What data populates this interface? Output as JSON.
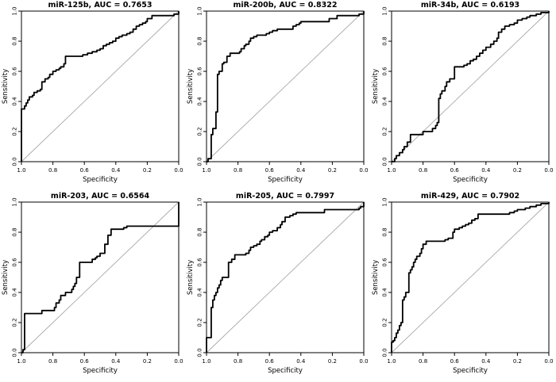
{
  "page": {
    "background": "#ffffff"
  },
  "colors": {
    "curve": "#000000",
    "diagonal": "#aaaaaa",
    "box": "#000000",
    "text": "#000000"
  },
  "chart_data": [
    {
      "type": "line",
      "chart_kind": "ROC curve",
      "mirna": "miR-125b",
      "auc": 0.7653,
      "title": "miR-125b, AUC = 0.7653",
      "xlabel": "Specificity",
      "ylabel": "Sensitivity",
      "x_ticks": [
        "1.0",
        "0.8",
        "0.6",
        "0.4",
        "0.2",
        "0.0"
      ],
      "y_ticks": [
        "0.0",
        "0.2",
        "0.4",
        "0.6",
        "0.8",
        "1.0"
      ],
      "xlim": [
        1.0,
        0.0
      ],
      "ylim": [
        0.0,
        1.0
      ],
      "diagonal_reference": true,
      "roc_points": [
        [
          1.0,
          0.0
        ],
        [
          1.0,
          0.35
        ],
        [
          0.98,
          0.37
        ],
        [
          0.97,
          0.39
        ],
        [
          0.96,
          0.41
        ],
        [
          0.95,
          0.43
        ],
        [
          0.93,
          0.44
        ],
        [
          0.92,
          0.46
        ],
        [
          0.9,
          0.47
        ],
        [
          0.88,
          0.48
        ],
        [
          0.87,
          0.53
        ],
        [
          0.85,
          0.55
        ],
        [
          0.83,
          0.56
        ],
        [
          0.82,
          0.58
        ],
        [
          0.8,
          0.6
        ],
        [
          0.78,
          0.61
        ],
        [
          0.76,
          0.62
        ],
        [
          0.75,
          0.63
        ],
        [
          0.73,
          0.65
        ],
        [
          0.72,
          0.7
        ],
        [
          0.61,
          0.71
        ],
        [
          0.58,
          0.72
        ],
        [
          0.55,
          0.73
        ],
        [
          0.52,
          0.74
        ],
        [
          0.5,
          0.75
        ],
        [
          0.48,
          0.77
        ],
        [
          0.46,
          0.78
        ],
        [
          0.44,
          0.79
        ],
        [
          0.42,
          0.8
        ],
        [
          0.4,
          0.82
        ],
        [
          0.38,
          0.83
        ],
        [
          0.36,
          0.84
        ],
        [
          0.33,
          0.85
        ],
        [
          0.31,
          0.86
        ],
        [
          0.29,
          0.88
        ],
        [
          0.27,
          0.9
        ],
        [
          0.25,
          0.91
        ],
        [
          0.23,
          0.92
        ],
        [
          0.21,
          0.93
        ],
        [
          0.2,
          0.95
        ],
        [
          0.17,
          0.97
        ],
        [
          0.03,
          0.98
        ],
        [
          0.0,
          1.0
        ]
      ]
    },
    {
      "type": "line",
      "chart_kind": "ROC curve",
      "mirna": "miR-200b",
      "auc": 0.8322,
      "title": "miR-200b, AUC = 0.8322",
      "xlabel": "Specificity",
      "ylabel": "Sensitivity",
      "x_ticks": [
        "1.0",
        "0.8",
        "0.6",
        "0.4",
        "0.2",
        "0.0"
      ],
      "y_ticks": [
        "0.0",
        "0.2",
        "0.4",
        "0.6",
        "0.8",
        "1.0"
      ],
      "xlim": [
        1.0,
        0.0
      ],
      "ylim": [
        0.0,
        1.0
      ],
      "diagonal_reference": true,
      "roc_points": [
        [
          1.0,
          0.0
        ],
        [
          0.99,
          0.02
        ],
        [
          0.97,
          0.18
        ],
        [
          0.96,
          0.22
        ],
        [
          0.94,
          0.33
        ],
        [
          0.93,
          0.58
        ],
        [
          0.92,
          0.6
        ],
        [
          0.9,
          0.65
        ],
        [
          0.89,
          0.66
        ],
        [
          0.87,
          0.7
        ],
        [
          0.85,
          0.72
        ],
        [
          0.79,
          0.73
        ],
        [
          0.78,
          0.75
        ],
        [
          0.76,
          0.77
        ],
        [
          0.75,
          0.78
        ],
        [
          0.73,
          0.8
        ],
        [
          0.72,
          0.82
        ],
        [
          0.7,
          0.83
        ],
        [
          0.68,
          0.84
        ],
        [
          0.62,
          0.85
        ],
        [
          0.6,
          0.86
        ],
        [
          0.58,
          0.87
        ],
        [
          0.55,
          0.88
        ],
        [
          0.45,
          0.9
        ],
        [
          0.43,
          0.91
        ],
        [
          0.41,
          0.92
        ],
        [
          0.4,
          0.93
        ],
        [
          0.22,
          0.95
        ],
        [
          0.17,
          0.97
        ],
        [
          0.03,
          0.98
        ],
        [
          0.0,
          1.0
        ]
      ]
    },
    {
      "type": "line",
      "chart_kind": "ROC curve",
      "mirna": "miR-34b",
      "auc": 0.6193,
      "title": "miR-34b, AUC = 0.6193",
      "xlabel": "Specificity",
      "ylabel": "Sensitivity",
      "x_ticks": [
        "1.0",
        "0.8",
        "0.6",
        "0.4",
        "0.2",
        "0.0"
      ],
      "y_ticks": [
        "0.0",
        "0.2",
        "0.4",
        "0.6",
        "0.8",
        "1.0"
      ],
      "xlim": [
        1.0,
        0.0
      ],
      "ylim": [
        0.0,
        1.0
      ],
      "diagonal_reference": true,
      "roc_points": [
        [
          1.0,
          0.0
        ],
        [
          0.98,
          0.02
        ],
        [
          0.97,
          0.04
        ],
        [
          0.95,
          0.06
        ],
        [
          0.93,
          0.08
        ],
        [
          0.92,
          0.1
        ],
        [
          0.9,
          0.13
        ],
        [
          0.88,
          0.18
        ],
        [
          0.8,
          0.2
        ],
        [
          0.74,
          0.22
        ],
        [
          0.72,
          0.24
        ],
        [
          0.71,
          0.26
        ],
        [
          0.7,
          0.42
        ],
        [
          0.69,
          0.45
        ],
        [
          0.68,
          0.47
        ],
        [
          0.66,
          0.5
        ],
        [
          0.65,
          0.53
        ],
        [
          0.63,
          0.55
        ],
        [
          0.6,
          0.63
        ],
        [
          0.54,
          0.64
        ],
        [
          0.52,
          0.65
        ],
        [
          0.5,
          0.67
        ],
        [
          0.48,
          0.68
        ],
        [
          0.46,
          0.7
        ],
        [
          0.44,
          0.72
        ],
        [
          0.42,
          0.74
        ],
        [
          0.4,
          0.76
        ],
        [
          0.37,
          0.78
        ],
        [
          0.35,
          0.8
        ],
        [
          0.33,
          0.82
        ],
        [
          0.32,
          0.86
        ],
        [
          0.3,
          0.88
        ],
        [
          0.28,
          0.9
        ],
        [
          0.25,
          0.91
        ],
        [
          0.22,
          0.92
        ],
        [
          0.2,
          0.94
        ],
        [
          0.17,
          0.95
        ],
        [
          0.14,
          0.96
        ],
        [
          0.12,
          0.97
        ],
        [
          0.08,
          0.98
        ],
        [
          0.05,
          0.99
        ],
        [
          0.0,
          1.0
        ]
      ]
    },
    {
      "type": "line",
      "chart_kind": "ROC curve",
      "mirna": "miR-203",
      "auc": 0.6564,
      "title": "miR-203, AUC = 0.6564",
      "xlabel": "Specificity",
      "ylabel": "Sensitivity",
      "x_ticks": [
        "1.0",
        "0.8",
        "0.6",
        "0.4",
        "0.2",
        "0.0"
      ],
      "y_ticks": [
        "0.0",
        "0.2",
        "0.4",
        "0.6",
        "0.8",
        "1.0"
      ],
      "xlim": [
        1.0,
        0.0
      ],
      "ylim": [
        0.0,
        1.0
      ],
      "diagonal_reference": true,
      "roc_points": [
        [
          1.0,
          0.0
        ],
        [
          0.99,
          0.02
        ],
        [
          0.98,
          0.26
        ],
        [
          0.87,
          0.28
        ],
        [
          0.79,
          0.3
        ],
        [
          0.78,
          0.33
        ],
        [
          0.76,
          0.35
        ],
        [
          0.75,
          0.38
        ],
        [
          0.72,
          0.4
        ],
        [
          0.68,
          0.42
        ],
        [
          0.67,
          0.44
        ],
        [
          0.66,
          0.46
        ],
        [
          0.65,
          0.5
        ],
        [
          0.63,
          0.6
        ],
        [
          0.55,
          0.62
        ],
        [
          0.53,
          0.63
        ],
        [
          0.52,
          0.64
        ],
        [
          0.5,
          0.66
        ],
        [
          0.47,
          0.72
        ],
        [
          0.45,
          0.78
        ],
        [
          0.43,
          0.82
        ],
        [
          0.35,
          0.83
        ],
        [
          0.33,
          0.84
        ],
        [
          0.0,
          1.0
        ]
      ]
    },
    {
      "type": "line",
      "chart_kind": "ROC curve",
      "mirna": "miR-205",
      "auc": 0.7997,
      "title": "miR-205, AUC = 0.7997",
      "xlabel": "Specificity",
      "ylabel": "Sensitivity",
      "x_ticks": [
        "1.0",
        "0.8",
        "0.6",
        "0.4",
        "0.2",
        "0.0"
      ],
      "y_ticks": [
        "0.0",
        "0.2",
        "0.4",
        "0.6",
        "0.8",
        "1.0"
      ],
      "xlim": [
        1.0,
        0.0
      ],
      "ylim": [
        0.0,
        1.0
      ],
      "diagonal_reference": true,
      "roc_points": [
        [
          1.0,
          0.0
        ],
        [
          1.0,
          0.1
        ],
        [
          0.97,
          0.3
        ],
        [
          0.96,
          0.35
        ],
        [
          0.95,
          0.38
        ],
        [
          0.94,
          0.4
        ],
        [
          0.93,
          0.43
        ],
        [
          0.92,
          0.45
        ],
        [
          0.91,
          0.48
        ],
        [
          0.9,
          0.5
        ],
        [
          0.86,
          0.6
        ],
        [
          0.84,
          0.62
        ],
        [
          0.82,
          0.65
        ],
        [
          0.75,
          0.66
        ],
        [
          0.73,
          0.68
        ],
        [
          0.72,
          0.7
        ],
        [
          0.7,
          0.71
        ],
        [
          0.68,
          0.72
        ],
        [
          0.66,
          0.74
        ],
        [
          0.65,
          0.75
        ],
        [
          0.63,
          0.77
        ],
        [
          0.61,
          0.78
        ],
        [
          0.6,
          0.8
        ],
        [
          0.58,
          0.81
        ],
        [
          0.55,
          0.83
        ],
        [
          0.53,
          0.85
        ],
        [
          0.52,
          0.87
        ],
        [
          0.5,
          0.9
        ],
        [
          0.47,
          0.91
        ],
        [
          0.45,
          0.92
        ],
        [
          0.43,
          0.93
        ],
        [
          0.25,
          0.95
        ],
        [
          0.03,
          0.96
        ],
        [
          0.02,
          0.97
        ],
        [
          0.0,
          1.0
        ]
      ]
    },
    {
      "type": "line",
      "chart_kind": "ROC curve",
      "mirna": "miR-429",
      "auc": 0.7902,
      "title": "miR-429, AUC = 0.7902",
      "xlabel": "Specificity",
      "ylabel": "Sensitivity",
      "x_ticks": [
        "1.0",
        "0.8",
        "0.6",
        "0.4",
        "0.2",
        "0.0"
      ],
      "y_ticks": [
        "0.0",
        "0.2",
        "0.4",
        "0.6",
        "0.8",
        "1.0"
      ],
      "xlim": [
        1.0,
        0.0
      ],
      "ylim": [
        0.0,
        1.0
      ],
      "diagonal_reference": true,
      "roc_points": [
        [
          1.0,
          0.0
        ],
        [
          1.0,
          0.07
        ],
        [
          0.99,
          0.08
        ],
        [
          0.98,
          0.1
        ],
        [
          0.97,
          0.13
        ],
        [
          0.96,
          0.15
        ],
        [
          0.95,
          0.18
        ],
        [
          0.94,
          0.2
        ],
        [
          0.93,
          0.35
        ],
        [
          0.92,
          0.37
        ],
        [
          0.91,
          0.4
        ],
        [
          0.89,
          0.53
        ],
        [
          0.88,
          0.55
        ],
        [
          0.87,
          0.57
        ],
        [
          0.86,
          0.6
        ],
        [
          0.85,
          0.62
        ],
        [
          0.84,
          0.64
        ],
        [
          0.82,
          0.66
        ],
        [
          0.81,
          0.69
        ],
        [
          0.8,
          0.72
        ],
        [
          0.78,
          0.74
        ],
        [
          0.66,
          0.75
        ],
        [
          0.64,
          0.76
        ],
        [
          0.61,
          0.8
        ],
        [
          0.6,
          0.82
        ],
        [
          0.57,
          0.83
        ],
        [
          0.55,
          0.84
        ],
        [
          0.53,
          0.85
        ],
        [
          0.51,
          0.86
        ],
        [
          0.49,
          0.88
        ],
        [
          0.47,
          0.89
        ],
        [
          0.45,
          0.92
        ],
        [
          0.25,
          0.93
        ],
        [
          0.22,
          0.94
        ],
        [
          0.2,
          0.95
        ],
        [
          0.15,
          0.96
        ],
        [
          0.12,
          0.97
        ],
        [
          0.08,
          0.98
        ],
        [
          0.05,
          0.99
        ],
        [
          0.0,
          1.0
        ]
      ]
    }
  ]
}
